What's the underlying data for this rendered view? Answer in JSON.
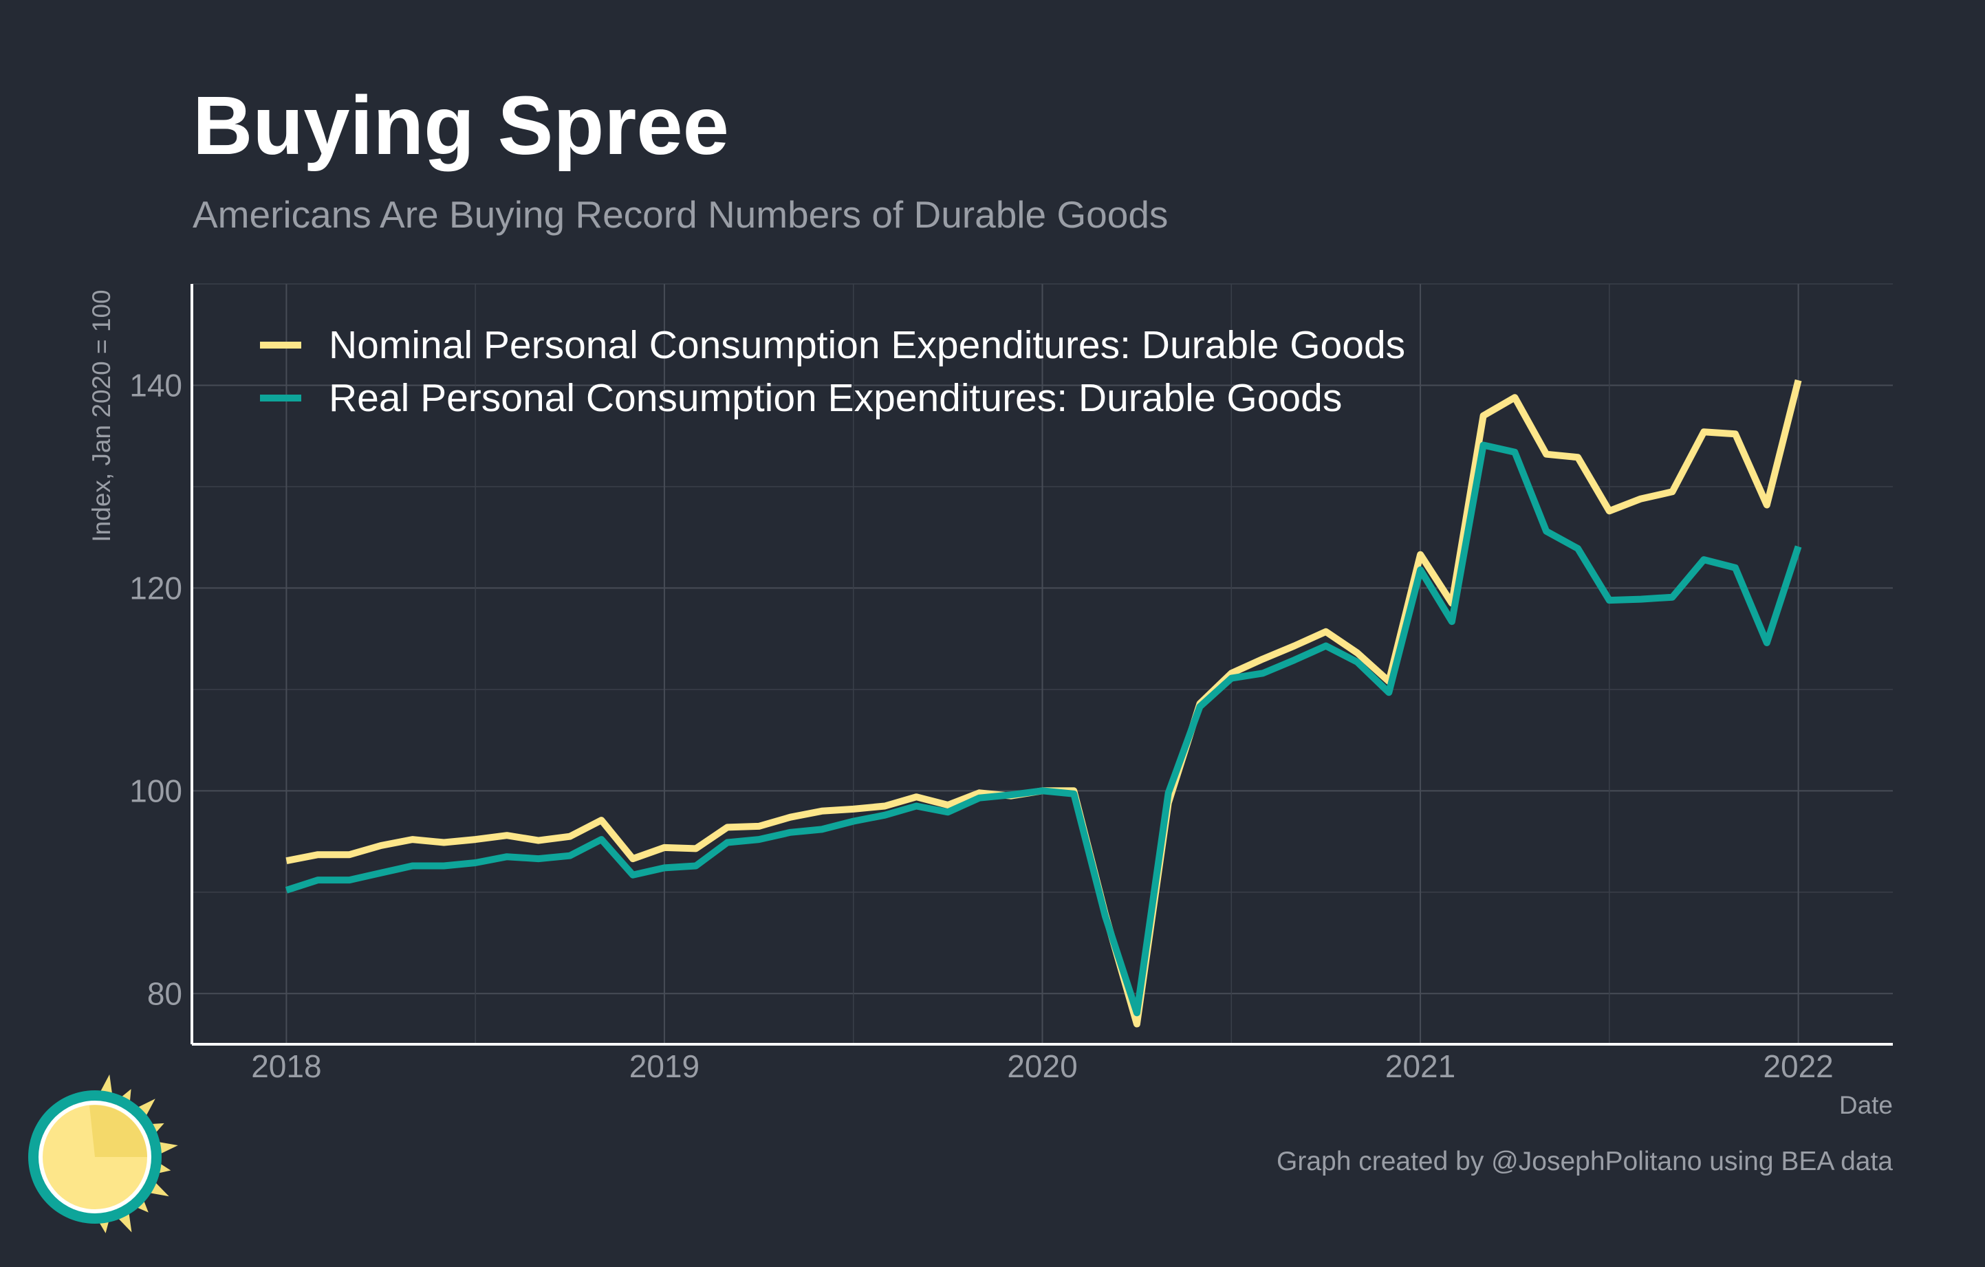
{
  "chart_data": {
    "type": "line",
    "title": "Buying Spree",
    "subtitle": "Americans Are Buying Record Numbers of Durable Goods",
    "xlabel": "Date",
    "ylabel": "Index, Jan 2020 = 100",
    "caption": "Graph created by @JosephPolitano using BEA data",
    "x_ticks": [
      "2018",
      "2019",
      "2020",
      "2021",
      "2022"
    ],
    "y_ticks": [
      80,
      100,
      120,
      140
    ],
    "ylim": [
      75,
      150
    ],
    "xlim": [
      "2017-10",
      "2022-04"
    ],
    "grid": true,
    "legend_position": "top-left",
    "x": [
      "2018-01",
      "2018-02",
      "2018-03",
      "2018-04",
      "2018-05",
      "2018-06",
      "2018-07",
      "2018-08",
      "2018-09",
      "2018-10",
      "2018-11",
      "2018-12",
      "2019-01",
      "2019-02",
      "2019-03",
      "2019-04",
      "2019-05",
      "2019-06",
      "2019-07",
      "2019-08",
      "2019-09",
      "2019-10",
      "2019-11",
      "2019-12",
      "2020-01",
      "2020-02",
      "2020-03",
      "2020-04",
      "2020-05",
      "2020-06",
      "2020-07",
      "2020-08",
      "2020-09",
      "2020-10",
      "2020-11",
      "2020-12",
      "2021-01",
      "2021-02",
      "2021-03",
      "2021-04",
      "2021-05",
      "2021-06",
      "2021-07",
      "2021-08",
      "2021-09",
      "2021-10",
      "2021-11",
      "2021-12",
      "2022-01"
    ],
    "series": [
      {
        "name": "Nominal Personal Consumption Expenditures: Durable Goods",
        "color": "#fde68a",
        "values": [
          93.1,
          93.7,
          93.7,
          94.6,
          95.2,
          94.9,
          95.2,
          95.6,
          95.1,
          95.5,
          97.1,
          93.3,
          94.4,
          94.3,
          96.4,
          96.5,
          97.4,
          98.0,
          98.2,
          98.5,
          99.4,
          98.6,
          99.8,
          99.5,
          100.0,
          100.0,
          87.8,
          77.0,
          98.8,
          108.6,
          111.6,
          113.0,
          114.3,
          115.7,
          113.6,
          110.8,
          123.3,
          118.5,
          137.0,
          138.8,
          133.2,
          132.9,
          127.6,
          128.8,
          129.5,
          135.4,
          135.2,
          128.2,
          140.5
        ]
      },
      {
        "name": "Real Personal Consumption Expenditures: Durable Goods",
        "color": "#0ea59a",
        "values": [
          90.2,
          91.2,
          91.2,
          91.9,
          92.6,
          92.6,
          92.9,
          93.5,
          93.3,
          93.6,
          95.2,
          91.7,
          92.4,
          92.6,
          94.9,
          95.2,
          95.9,
          96.2,
          97.0,
          97.6,
          98.5,
          97.9,
          99.3,
          99.6,
          100.0,
          99.7,
          87.6,
          78.1,
          99.8,
          108.3,
          111.1,
          111.6,
          112.9,
          114.3,
          112.7,
          109.7,
          121.8,
          116.7,
          134.1,
          133.4,
          125.6,
          123.9,
          118.8,
          118.9,
          119.1,
          122.8,
          122.0,
          114.6,
          124.1
        ]
      }
    ]
  },
  "logo": {
    "name": "sun-logo",
    "ring_color": "#0ea59a",
    "sun_color": "#fde68a",
    "ray_color": "#f5e07a"
  }
}
